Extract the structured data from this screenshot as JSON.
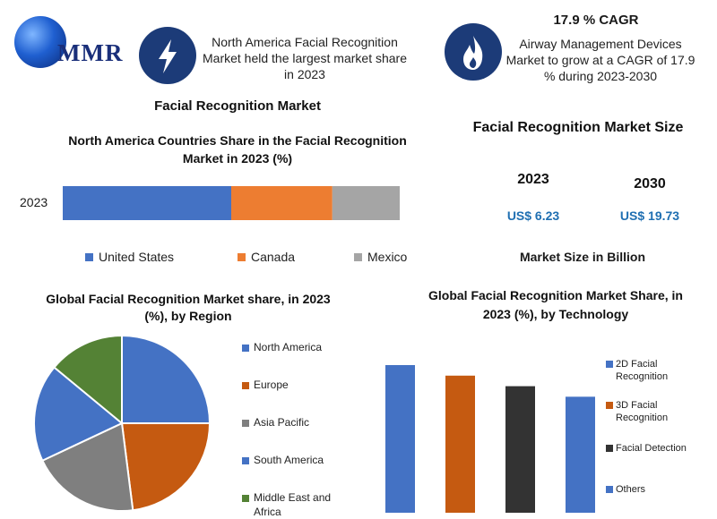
{
  "brand": {
    "name": "MMR"
  },
  "header": {
    "left_note": "North America Facial Recognition Market held the largest market share in 2023",
    "cagr_title": "17.9 % CAGR",
    "right_note": "Airway Management Devices Market to grow at a CAGR of 17.9 % during 2023-2030"
  },
  "icons": {
    "left": "lightning-icon",
    "right": "flame-icon"
  },
  "main_title": "Facial Recognition Market",
  "market_size": {
    "title": "Facial Recognition Market Size",
    "years": [
      {
        "year": "2023",
        "value": "US$ 6.23"
      },
      {
        "year": "2030",
        "value": "US$ 19.73"
      }
    ],
    "unit_label": "Market Size in Billion"
  },
  "colors": {
    "blue": "#4472c4",
    "orange": "#ed7d31",
    "gray": "#a5a5a5",
    "dark_blue": "#4472c4",
    "rust": "#c55a11",
    "slate": "#7f7f7f",
    "green": "#548235",
    "dark": "#333333",
    "value_blue": "#1f6fb2",
    "icon_bg": "#1c3b78"
  },
  "chart_data": [
    {
      "type": "bar",
      "orientation": "horizontal-stacked",
      "title": "North America Countries Share in the Facial Recognition Market in 2023 (%)",
      "categories": [
        "2023"
      ],
      "series": [
        {
          "name": "United States",
          "values": [
            50
          ],
          "color": "#4472c4"
        },
        {
          "name": "Canada",
          "values": [
            30
          ],
          "color": "#ed7d31"
        },
        {
          "name": "Mexico",
          "values": [
            20
          ],
          "color": "#a5a5a5"
        }
      ],
      "legend": "bottom"
    },
    {
      "type": "pie",
      "title": "Global Facial Recognition Market share, in 2023 (%), by Region",
      "labels": [
        "North America",
        "Europe",
        "Asia Pacific",
        "South America",
        "Middle East and Africa"
      ],
      "values": [
        25,
        23,
        20,
        18,
        14
      ],
      "colors": [
        "#4472c4",
        "#c55a11",
        "#7f7f7f",
        "#4472c4",
        "#548235"
      ],
      "legend": "right"
    },
    {
      "type": "bar",
      "title": "Global Facial Recognition Market Share, in 2023 (%), by Technology",
      "categories": [
        "2D Facial Recognition",
        "3D Facial Recognition",
        "Facial Detection",
        "Others"
      ],
      "values": [
        28,
        26,
        24,
        22
      ],
      "colors": [
        "#4472c4",
        "#c55a11",
        "#333333",
        "#4472c4"
      ],
      "legend": "right"
    }
  ]
}
